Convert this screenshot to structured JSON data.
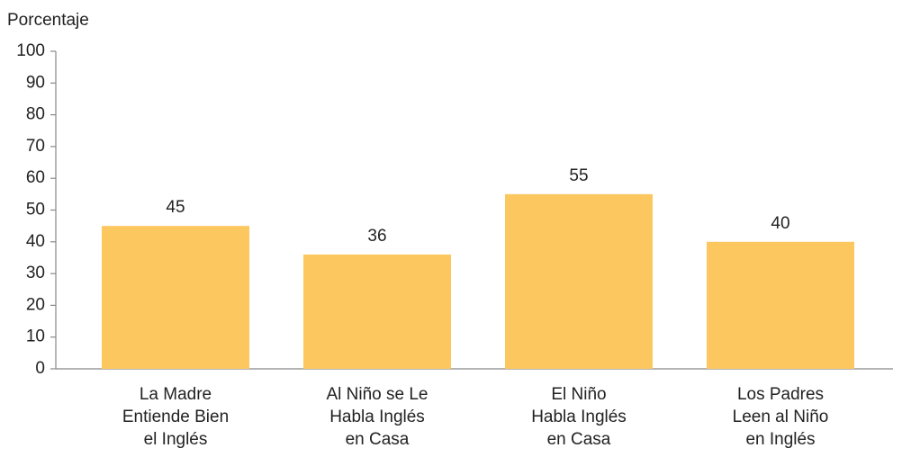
{
  "chart_data": {
    "type": "bar",
    "y_axis_label": "Porcentaje",
    "categories": [
      "La Madre\nEntiende Bien\nel Inglés",
      "Al Niño se Le\nHabla Inglés\nen Casa",
      "El Niño\nHabla Inglés\nen Casa",
      "Los Padres\nLeen al Niño\nen Inglés"
    ],
    "values": [
      45,
      36,
      55,
      40
    ],
    "color": "#fdc75f",
    "ylim": [
      0,
      100
    ],
    "yticks": [
      0,
      10,
      20,
      30,
      40,
      50,
      60,
      70,
      80,
      90,
      100
    ],
    "grid": false
  }
}
